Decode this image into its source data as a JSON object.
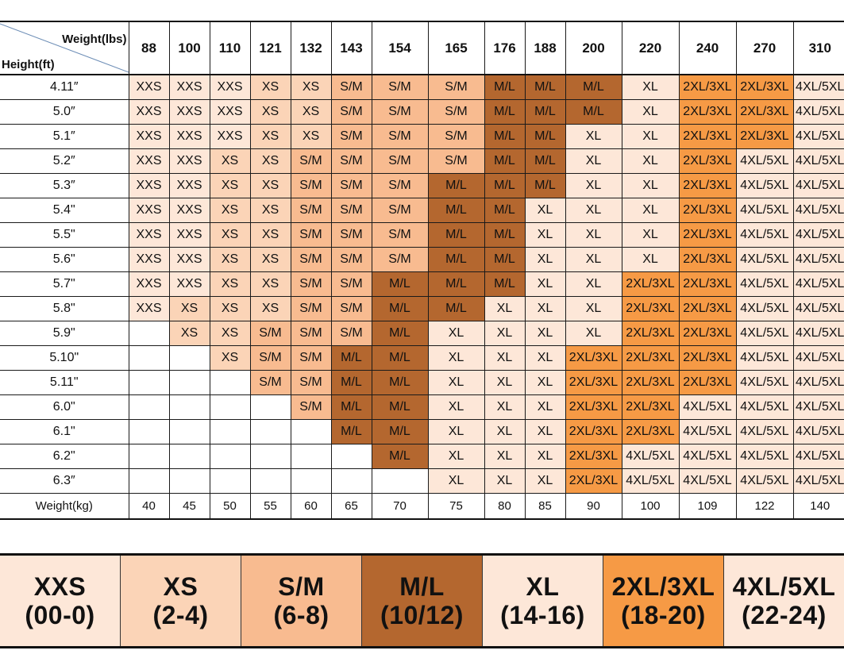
{
  "header": {
    "weight_label": "Weight(lbs)",
    "height_label": "Height(ft)",
    "weights_lbs": [
      "88",
      "100",
      "110",
      "121",
      "132",
      "143",
      "154",
      "165",
      "176",
      "188",
      "200",
      "220",
      "240",
      "270",
      "310"
    ]
  },
  "rows": [
    {
      "height": "4.11″",
      "sizes": [
        "XXS",
        "XXS",
        "XXS",
        "XS",
        "XS",
        "S/M",
        "S/M",
        "S/M",
        "M/L",
        "M/L",
        "M/L",
        "XL",
        "2XL/3XL",
        "2XL/3XL",
        "4XL/5XL"
      ]
    },
    {
      "height": "5.0″",
      "sizes": [
        "XXS",
        "XXS",
        "XXS",
        "XS",
        "XS",
        "S/M",
        "S/M",
        "S/M",
        "M/L",
        "M/L",
        "M/L",
        "XL",
        "2XL/3XL",
        "2XL/3XL",
        "4XL/5XL"
      ]
    },
    {
      "height": "5.1″",
      "sizes": [
        "XXS",
        "XXS",
        "XXS",
        "XS",
        "XS",
        "S/M",
        "S/M",
        "S/M",
        "M/L",
        "M/L",
        "XL",
        "XL",
        "2XL/3XL",
        "2XL/3XL",
        "4XL/5XL"
      ]
    },
    {
      "height": "5.2″",
      "sizes": [
        "XXS",
        "XXS",
        "XS",
        "XS",
        "S/M",
        "S/M",
        "S/M",
        "S/M",
        "M/L",
        "M/L",
        "XL",
        "XL",
        "2XL/3XL",
        "4XL/5XL",
        "4XL/5XL"
      ]
    },
    {
      "height": "5.3″",
      "sizes": [
        "XXS",
        "XXS",
        "XS",
        "XS",
        "S/M",
        "S/M",
        "S/M",
        "M/L",
        "M/L",
        "M/L",
        "XL",
        "XL",
        "2XL/3XL",
        "4XL/5XL",
        "4XL/5XL"
      ]
    },
    {
      "height": "5.4\"",
      "sizes": [
        "XXS",
        "XXS",
        "XS",
        "XS",
        "S/M",
        "S/M",
        "S/M",
        "M/L",
        "M/L",
        "XL",
        "XL",
        "XL",
        "2XL/3XL",
        "4XL/5XL",
        "4XL/5XL"
      ]
    },
    {
      "height": "5.5\"",
      "sizes": [
        "XXS",
        "XXS",
        "XS",
        "XS",
        "S/M",
        "S/M",
        "S/M",
        "M/L",
        "M/L",
        "XL",
        "XL",
        "XL",
        "2XL/3XL",
        "4XL/5XL",
        "4XL/5XL"
      ]
    },
    {
      "height": "5.6\"",
      "sizes": [
        "XXS",
        "XXS",
        "XS",
        "XS",
        "S/M",
        "S/M",
        "S/M",
        "M/L",
        "M/L",
        "XL",
        "XL",
        "XL",
        "2XL/3XL",
        "4XL/5XL",
        "4XL/5XL"
      ]
    },
    {
      "height": "5.7\"",
      "sizes": [
        "XXS",
        "XXS",
        "XS",
        "XS",
        "S/M",
        "S/M",
        "M/L",
        "M/L",
        "M/L",
        "XL",
        "XL",
        "2XL/3XL",
        "2XL/3XL",
        "4XL/5XL",
        "4XL/5XL"
      ]
    },
    {
      "height": "5.8\"",
      "sizes": [
        "XXS",
        "XS",
        "XS",
        "XS",
        "S/M",
        "S/M",
        "M/L",
        "M/L",
        "XL",
        "XL",
        "XL",
        "2XL/3XL",
        "2XL/3XL",
        "4XL/5XL",
        "4XL/5XL"
      ]
    },
    {
      "height": "5.9\"",
      "sizes": [
        "",
        "XS",
        "XS",
        "S/M",
        "S/M",
        "S/M",
        "M/L",
        "XL",
        "XL",
        "XL",
        "XL",
        "2XL/3XL",
        "2XL/3XL",
        "4XL/5XL",
        "4XL/5XL"
      ]
    },
    {
      "height": "5.10\"",
      "sizes": [
        "",
        "",
        "XS",
        "S/M",
        "S/M",
        "M/L",
        "M/L",
        "XL",
        "XL",
        "XL",
        "2XL/3XL",
        "2XL/3XL",
        "2XL/3XL",
        "4XL/5XL",
        "4XL/5XL"
      ]
    },
    {
      "height": "5.11\"",
      "sizes": [
        "",
        "",
        "",
        "S/M",
        "S/M",
        "M/L",
        "M/L",
        "XL",
        "XL",
        "XL",
        "2XL/3XL",
        "2XL/3XL",
        "2XL/3XL",
        "4XL/5XL",
        "4XL/5XL"
      ]
    },
    {
      "height": "6.0\"",
      "sizes": [
        "",
        "",
        "",
        "",
        "S/M",
        "M/L",
        "M/L",
        "XL",
        "XL",
        "XL",
        "2XL/3XL",
        "2XL/3XL",
        "4XL/5XL",
        "4XL/5XL",
        "4XL/5XL"
      ]
    },
    {
      "height": "6.1\"",
      "sizes": [
        "",
        "",
        "",
        "",
        "",
        "M/L",
        "M/L",
        "XL",
        "XL",
        "XL",
        "2XL/3XL",
        "2XL/3XL",
        "4XL/5XL",
        "4XL/5XL",
        "4XL/5XL"
      ]
    },
    {
      "height": "6.2\"",
      "sizes": [
        "",
        "",
        "",
        "",
        "",
        "",
        "M/L",
        "XL",
        "XL",
        "XL",
        "2XL/3XL",
        "4XL/5XL",
        "4XL/5XL",
        "4XL/5XL",
        "4XL/5XL"
      ]
    },
    {
      "height": "6.3″",
      "sizes": [
        "",
        "",
        "",
        "",
        "",
        "",
        "",
        "XL",
        "XL",
        "XL",
        "2XL/3XL",
        "4XL/5XL",
        "4XL/5XL",
        "4XL/5XL",
        "4XL/5XL"
      ]
    }
  ],
  "kg_row": {
    "label": "Weight(kg)",
    "values": [
      "40",
      "45",
      "50",
      "55",
      "60",
      "65",
      "70",
      "75",
      "80",
      "85",
      "90",
      "100",
      "109",
      "122",
      "140"
    ]
  },
  "size_colors": {
    "XXS": "#fde7d8",
    "XS": "#fbd4b7",
    "S/M": "#f8bb90",
    "M/L": "#b4672f",
    "XL": "#fde7d8",
    "2XL/3XL": "#f69a45",
    "4XL/5XL": "#fde7d8"
  },
  "legend": [
    {
      "size": "XXS",
      "range": "(00-0)",
      "color": "#fde7d8"
    },
    {
      "size": "XS",
      "range": "(2-4)",
      "color": "#fbd4b7"
    },
    {
      "size": "S/M",
      "range": "(6-8)",
      "color": "#f8bb90"
    },
    {
      "size": "M/L",
      "range": "(10/12)",
      "color": "#b4672f"
    },
    {
      "size": "XL",
      "range": "(14-16)",
      "color": "#fde7d8"
    },
    {
      "size": "2XL/3XL",
      "range": "(18-20)",
      "color": "#f69a45"
    },
    {
      "size": "4XL/5XL",
      "range": "(22-24)",
      "color": "#fde7d8"
    }
  ]
}
